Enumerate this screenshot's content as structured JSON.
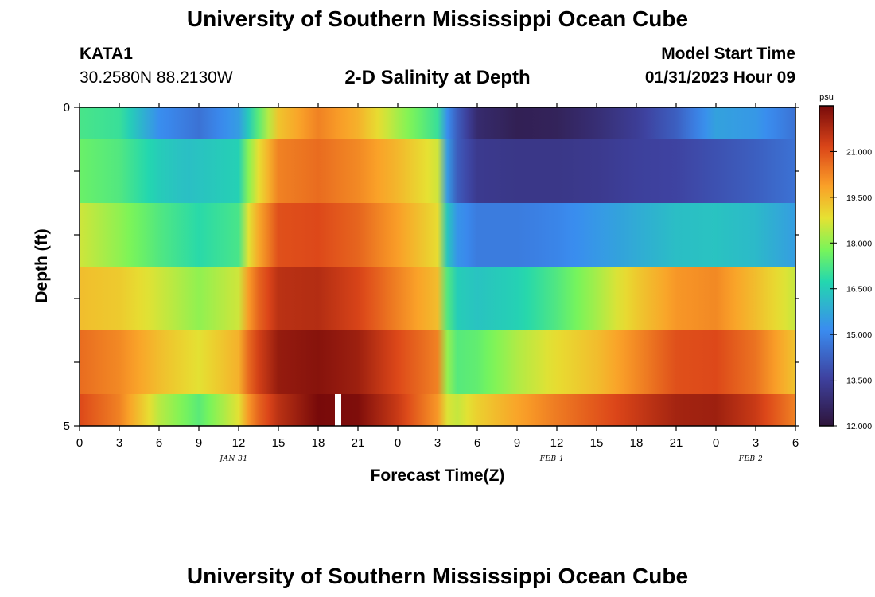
{
  "header": {
    "title": "University of Southern Mississippi Ocean Cube",
    "station": "KATA1",
    "coords": "30.2580N  88.2130W",
    "subtitle": "2-D Salinity at Depth",
    "model_label": "Model Start Time",
    "model_time": "01/31/2023 Hour 09"
  },
  "footer": {
    "title": "University of Southern Mississippi Ocean Cube"
  },
  "chart_data": {
    "type": "heatmap",
    "title": "2-D Salinity at Depth",
    "xlabel": "Forecast Time(Z)",
    "ylabel": "Depth (ft)",
    "x_tick_labels": [
      "0",
      "3",
      "6",
      "9",
      "12",
      "15",
      "18",
      "21",
      "0",
      "3",
      "6",
      "9",
      "12",
      "15",
      "18",
      "21",
      "0",
      "3",
      "6"
    ],
    "day_labels": [
      {
        "label": "JAN 31",
        "hour": 12
      },
      {
        "label": "FEB 1",
        "hour": 36
      },
      {
        "label": "FEB 2",
        "hour": 51
      }
    ],
    "y_tick_labels": [
      "0",
      "5"
    ],
    "ylim": [
      0,
      5
    ],
    "xlim_hours": [
      0,
      54
    ],
    "marker_hour": 19.5,
    "colorbar": {
      "unit": "psu",
      "min": 12.0,
      "max": 22.5,
      "tick_labels": [
        "21.000",
        "19.500",
        "18.000",
        "16.500",
        "15.000",
        "13.500",
        "12.000"
      ],
      "tick_values": [
        21.0,
        19.5,
        18.0,
        16.5,
        15.0,
        13.5,
        12.0
      ]
    },
    "rows": [
      {
        "depth": "0-0.5",
        "hours": [
          0,
          3,
          6,
          9,
          12,
          13,
          15,
          18,
          21,
          24,
          27,
          28,
          30,
          33,
          36,
          39,
          42,
          45,
          48,
          51,
          54
        ],
        "psu": [
          17.2,
          17.0,
          15.2,
          14.6,
          15.5,
          16.8,
          19.3,
          20.3,
          19.6,
          18.2,
          17.0,
          14.6,
          12.8,
          12.4,
          12.5,
          12.9,
          13.4,
          14.2,
          15.6,
          15.4,
          14.6
        ]
      },
      {
        "depth": "0.5-1.5",
        "hours": [
          0,
          3,
          6,
          8,
          12,
          13,
          15,
          18,
          21,
          24,
          27,
          28,
          30,
          33,
          36,
          39,
          42,
          45,
          48,
          51,
          54
        ],
        "psu": [
          17.6,
          17.3,
          16.5,
          16.2,
          16.6,
          18.4,
          20.3,
          20.6,
          20.2,
          19.5,
          18.6,
          14.4,
          13.3,
          13.2,
          13.2,
          13.3,
          13.5,
          13.6,
          13.9,
          14.2,
          14.6
        ]
      },
      {
        "depth": "1.5-2.5",
        "hours": [
          0,
          3,
          6,
          9,
          12,
          13,
          15,
          18,
          21,
          24,
          27,
          28,
          30,
          33,
          36,
          39,
          42,
          45,
          48,
          51,
          54
        ],
        "psu": [
          18.6,
          18.0,
          17.3,
          16.8,
          17.2,
          19.3,
          21.0,
          21.1,
          20.7,
          19.9,
          18.9,
          15.5,
          14.8,
          14.8,
          15.0,
          15.4,
          15.8,
          16.2,
          16.3,
          16.1,
          15.5
        ]
      },
      {
        "depth": "2.5-3.5",
        "hours": [
          0,
          3,
          6,
          9,
          12,
          13,
          15,
          18,
          21,
          24,
          27,
          28,
          30,
          33,
          36,
          39,
          42,
          45,
          48,
          51,
          54
        ],
        "psu": [
          19.4,
          19.2,
          18.6,
          18.0,
          18.6,
          20.4,
          21.6,
          21.7,
          21.2,
          20.3,
          19.4,
          16.6,
          16.3,
          16.6,
          17.3,
          18.2,
          19.2,
          20.0,
          20.2,
          19.4,
          18.5
        ]
      },
      {
        "depth": "3.5-4.5",
        "hours": [
          0,
          3,
          6,
          9,
          12,
          13,
          15,
          18,
          21,
          24,
          27,
          28,
          30,
          33,
          36,
          39,
          42,
          45,
          48,
          51,
          54
        ],
        "psu": [
          20.6,
          20.2,
          19.4,
          18.8,
          19.6,
          21.0,
          22.1,
          22.3,
          22.0,
          21.1,
          20.3,
          17.3,
          17.5,
          18.3,
          18.9,
          19.4,
          20.2,
          21.0,
          21.1,
          20.5,
          19.3
        ]
      },
      {
        "depth": "4.5-5",
        "hours": [
          0,
          3,
          6,
          9,
          12,
          13,
          15,
          18,
          21,
          24,
          27,
          28,
          30,
          33,
          36,
          39,
          42,
          45,
          48,
          51,
          54
        ],
        "psu": [
          21.1,
          20.3,
          18.4,
          17.4,
          18.8,
          20.4,
          21.6,
          22.5,
          22.4,
          21.4,
          20.0,
          18.3,
          19.1,
          19.8,
          20.4,
          20.9,
          21.4,
          21.9,
          22.0,
          21.4,
          20.3
        ]
      }
    ]
  }
}
